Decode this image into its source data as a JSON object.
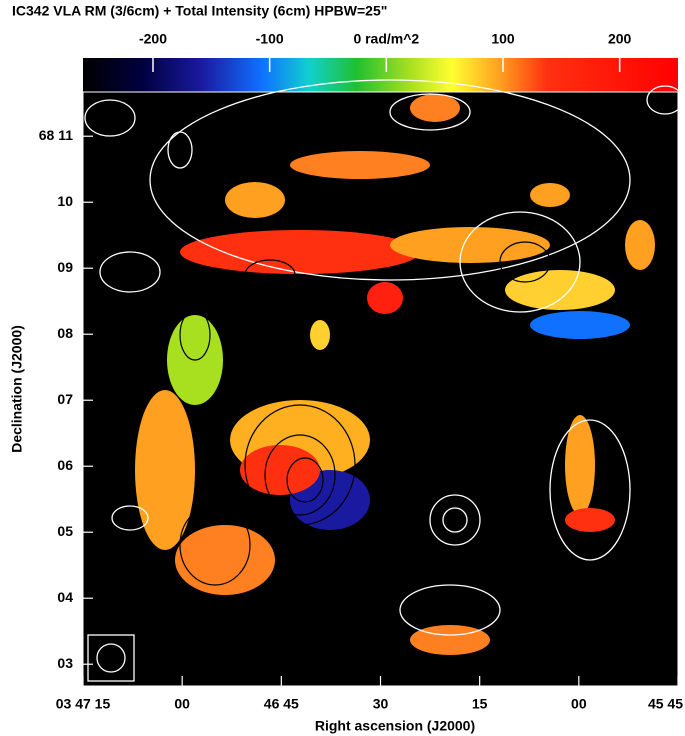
{
  "chart_data": {
    "type": "image",
    "title": "IC342   VLA   RM (3/6cm) + Total Intensity (6cm)  HPBW=25\"",
    "colorbar": {
      "clim": [
        -260,
        250
      ],
      "ticks": [
        -200,
        -100,
        {
          "value": 0,
          "label": "0 rad/m^2"
        },
        100,
        200
      ]
    },
    "xlabel": "Right ascension (J2000)",
    "ylabel": "Declination (J2000)",
    "xlim": [
      75,
      -15
    ],
    "xticks": [
      {
        "value": 75,
        "label": "03 47 15"
      },
      {
        "value": 60,
        "label": "00"
      },
      {
        "value": 45,
        "label": "46 45"
      },
      30,
      15,
      {
        "value": 0,
        "label": "00"
      },
      {
        "value": -15,
        "label": "45 45"
      }
    ],
    "ylim": [
      2.67,
      11.67
    ],
    "yticks": [
      {
        "value": 11,
        "label": "68 11"
      },
      10,
      {
        "value": 9,
        "label": "09"
      },
      {
        "value": 8,
        "label": "08"
      },
      {
        "value": 7,
        "label": "07"
      },
      {
        "value": 6,
        "label": "06"
      },
      {
        "value": 5,
        "label": "05"
      },
      {
        "value": 4,
        "label": "04"
      },
      {
        "value": 3,
        "label": "03"
      }
    ]
  }
}
